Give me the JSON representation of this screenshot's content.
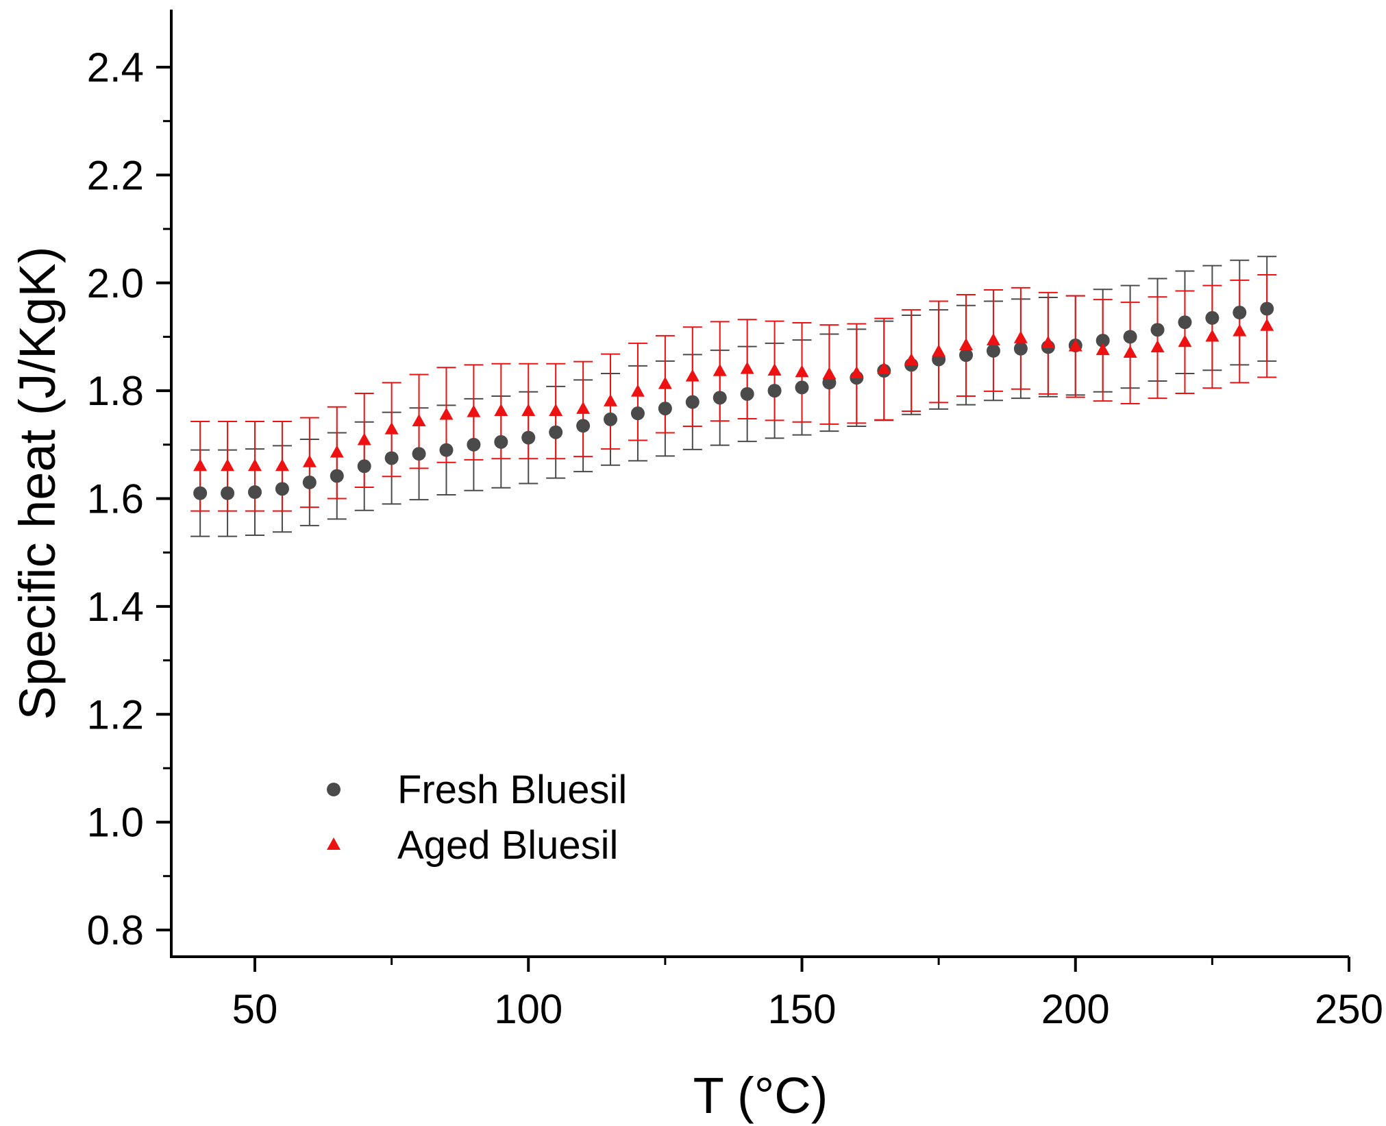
{
  "chart_data": {
    "type": "scatter",
    "title": "",
    "xlabel": "T (°C)",
    "ylabel": "Specific heat (J/KgK)",
    "xlim": [
      35,
      250
    ],
    "ylim": [
      0.75,
      2.5
    ],
    "xticks": [
      50,
      100,
      150,
      200,
      250
    ],
    "xtick_labels": [
      "50",
      "100",
      "150",
      "200",
      "250"
    ],
    "yticks": [
      0.8,
      1.0,
      1.2,
      1.4,
      1.6,
      1.8,
      2.0,
      2.2,
      2.4
    ],
    "ytick_labels": [
      "0.8",
      "1.0",
      "1.2",
      "1.4",
      "1.6",
      "1.8",
      "2.0",
      "2.2",
      "2.4"
    ],
    "legend_position": "bottom-left",
    "x": [
      40,
      45,
      50,
      55,
      60,
      65,
      70,
      75,
      80,
      85,
      90,
      95,
      100,
      105,
      110,
      115,
      120,
      125,
      130,
      135,
      140,
      145,
      150,
      155,
      160,
      165,
      170,
      175,
      180,
      185,
      190,
      195,
      200,
      205,
      210,
      215,
      220,
      225,
      230,
      235
    ],
    "series": [
      {
        "name": "Fresh Bluesil",
        "marker": "circle",
        "color": "#4a4a4a",
        "values": [
          1.61,
          1.61,
          1.612,
          1.618,
          1.63,
          1.642,
          1.66,
          1.675,
          1.683,
          1.69,
          1.7,
          1.705,
          1.713,
          1.723,
          1.735,
          1.747,
          1.758,
          1.767,
          1.779,
          1.787,
          1.794,
          1.8,
          1.806,
          1.815,
          1.824,
          1.837,
          1.848,
          1.858,
          1.866,
          1.874,
          1.878,
          1.881,
          1.884,
          1.893,
          1.9,
          1.913,
          1.927,
          1.935,
          1.945,
          1.952
        ],
        "errors": [
          0.08,
          0.08,
          0.08,
          0.08,
          0.08,
          0.08,
          0.082,
          0.085,
          0.085,
          0.083,
          0.085,
          0.085,
          0.085,
          0.085,
          0.085,
          0.085,
          0.088,
          0.088,
          0.088,
          0.088,
          0.088,
          0.088,
          0.088,
          0.09,
          0.09,
          0.092,
          0.092,
          0.092,
          0.092,
          0.092,
          0.092,
          0.092,
          0.092,
          0.095,
          0.095,
          0.095,
          0.095,
          0.097,
          0.097,
          0.097
        ]
      },
      {
        "name": "Aged Bluesil",
        "marker": "triangle",
        "color": "#ee1111",
        "values": [
          1.66,
          1.66,
          1.66,
          1.66,
          1.667,
          1.685,
          1.708,
          1.728,
          1.743,
          1.755,
          1.76,
          1.762,
          1.762,
          1.762,
          1.766,
          1.78,
          1.798,
          1.812,
          1.826,
          1.836,
          1.84,
          1.837,
          1.834,
          1.83,
          1.832,
          1.84,
          1.856,
          1.872,
          1.884,
          1.893,
          1.897,
          1.888,
          1.882,
          1.875,
          1.87,
          1.88,
          1.89,
          1.9,
          1.91,
          1.92
        ],
        "errors": [
          0.083,
          0.083,
          0.083,
          0.083,
          0.083,
          0.085,
          0.087,
          0.087,
          0.087,
          0.088,
          0.088,
          0.088,
          0.088,
          0.088,
          0.088,
          0.088,
          0.09,
          0.09,
          0.092,
          0.092,
          0.092,
          0.092,
          0.092,
          0.092,
          0.092,
          0.094,
          0.094,
          0.094,
          0.094,
          0.094,
          0.094,
          0.094,
          0.094,
          0.094,
          0.094,
          0.094,
          0.095,
          0.095,
          0.095,
          0.095
        ]
      }
    ]
  }
}
